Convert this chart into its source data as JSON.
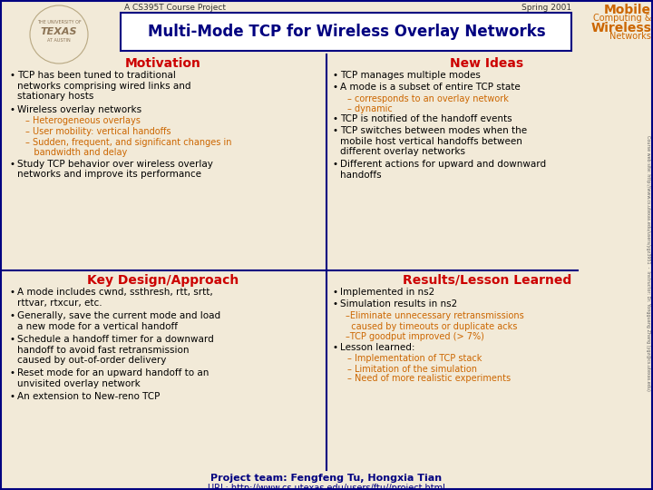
{
  "bg_color": "#f2ead8",
  "title": "Multi-Mode TCP for Wireless Overlay Networks",
  "title_color": "#000080",
  "header_left": "A CS395T Course Project",
  "header_right": "Spring 2001",
  "header_color": "#333333",
  "footer_team": "Project team: Fengfeng Tu, Hongxia Tian",
  "footer_url": "URL: http://www.cs.utexas.edu/users/ftu//project.html",
  "footer_color": "#000080",
  "mobile_color": "#cc6600",
  "section_red": "#cc0000",
  "sub_color": "#cc6600",
  "body_color": "#000000",
  "divider_color": "#000080",
  "box_border_color": "#000080"
}
